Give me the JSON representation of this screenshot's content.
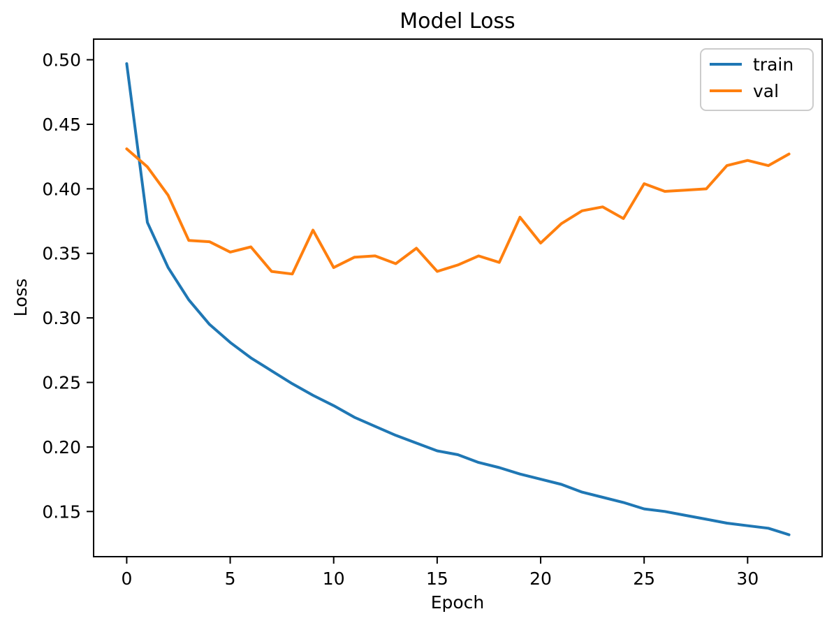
{
  "figure": {
    "title": "Model Loss",
    "xlabel": "Epoch",
    "ylabel": "Loss"
  },
  "legend": {
    "position": "upper right",
    "items": [
      {
        "label": "train",
        "color": "#1f77b4"
      },
      {
        "label": "val",
        "color": "#ff7f0e"
      }
    ]
  },
  "chart_data": {
    "type": "line",
    "title": "Model Loss",
    "xlabel": "Epoch",
    "ylabel": "Loss",
    "x": [
      0,
      1,
      2,
      3,
      4,
      5,
      6,
      7,
      8,
      9,
      10,
      11,
      12,
      13,
      14,
      15,
      16,
      17,
      18,
      19,
      20,
      21,
      22,
      23,
      24,
      25,
      26,
      27,
      28,
      29,
      30,
      31,
      32
    ],
    "series": [
      {
        "name": "train",
        "color": "#1f77b4",
        "values": [
          0.497,
          0.374,
          0.339,
          0.314,
          0.295,
          0.281,
          0.269,
          0.259,
          0.249,
          0.24,
          0.232,
          0.223,
          0.216,
          0.209,
          0.203,
          0.197,
          0.194,
          0.188,
          0.184,
          0.179,
          0.175,
          0.171,
          0.165,
          0.161,
          0.157,
          0.152,
          0.15,
          0.147,
          0.144,
          0.141,
          0.139,
          0.137,
          0.132
        ]
      },
      {
        "name": "val",
        "color": "#ff7f0e",
        "values": [
          0.431,
          0.417,
          0.395,
          0.36,
          0.359,
          0.351,
          0.355,
          0.336,
          0.334,
          0.368,
          0.339,
          0.347,
          0.348,
          0.342,
          0.354,
          0.336,
          0.341,
          0.348,
          0.343,
          0.378,
          0.358,
          0.373,
          0.383,
          0.386,
          0.377,
          0.404,
          0.398,
          0.399,
          0.4,
          0.418,
          0.422,
          0.418,
          0.427
        ]
      }
    ],
    "xlim": [
      -1.6,
      33.6
    ],
    "ylim": [
      0.115,
      0.516
    ],
    "xticks": [
      0,
      5,
      10,
      15,
      20,
      25,
      30
    ],
    "yticks": [
      0.15,
      0.2,
      0.25,
      0.3,
      0.35,
      0.4,
      0.45,
      0.5
    ],
    "ytick_format_decimals": 2,
    "grid": false,
    "line_width": 4,
    "legend_position": "upper right"
  }
}
